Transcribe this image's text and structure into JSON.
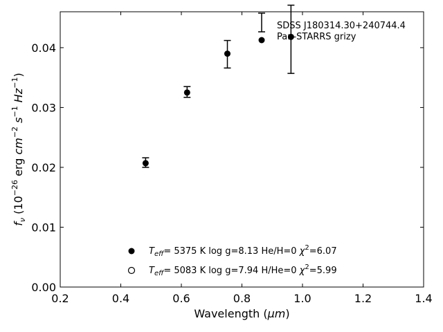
{
  "chart_data": {
    "type": "scatter",
    "xlabel": "Wavelength (μm)",
    "ylabel": "f_ν (10^−26 erg cm^−2 s^−1 Hz^−1)",
    "xlim": [
      0.2,
      1.4
    ],
    "ylim": [
      0.0,
      0.046
    ],
    "xticks": [
      "0.2",
      "0.4",
      "0.6",
      "0.8",
      "1.0",
      "1.2",
      "1.4"
    ],
    "yticks": [
      "0.00",
      "0.01",
      "0.02",
      "0.03",
      "0.04"
    ],
    "grid": false,
    "legend": {
      "placement": "top-right",
      "entries": [
        "SDSS J180314.30+240744.4",
        "Pan-STARRS grizy"
      ]
    },
    "series": [
      {
        "name": "SDSS J180314.30+240744.4",
        "kind": "errorbar",
        "points": [
          {
            "x": 0.482,
            "y": 0.0208,
            "err": 0.0008
          },
          {
            "x": 0.619,
            "y": 0.0326,
            "err": 0.0009
          },
          {
            "x": 0.752,
            "y": 0.0389,
            "err": 0.0023
          },
          {
            "x": 0.962,
            "y": 0.0414,
            "err": 0.0057
          }
        ]
      },
      {
        "name": "Pan-STARRS grizy",
        "kind": "dot",
        "points": [
          {
            "x": 0.482,
            "y": 0.0207
          },
          {
            "x": 0.619,
            "y": 0.0325
          },
          {
            "x": 0.752,
            "y": 0.039
          },
          {
            "x": 0.962,
            "y": 0.0418
          }
        ]
      }
    ],
    "model_annotations": [
      {
        "marker": "filled",
        "teff": "5375",
        "logg": "8.13",
        "comp": "He/H=0",
        "chi2": "6.07"
      },
      {
        "marker": "open",
        "teff": "5083",
        "logg": "7.94",
        "comp": "H/He=0",
        "chi2": "5.99"
      }
    ]
  }
}
